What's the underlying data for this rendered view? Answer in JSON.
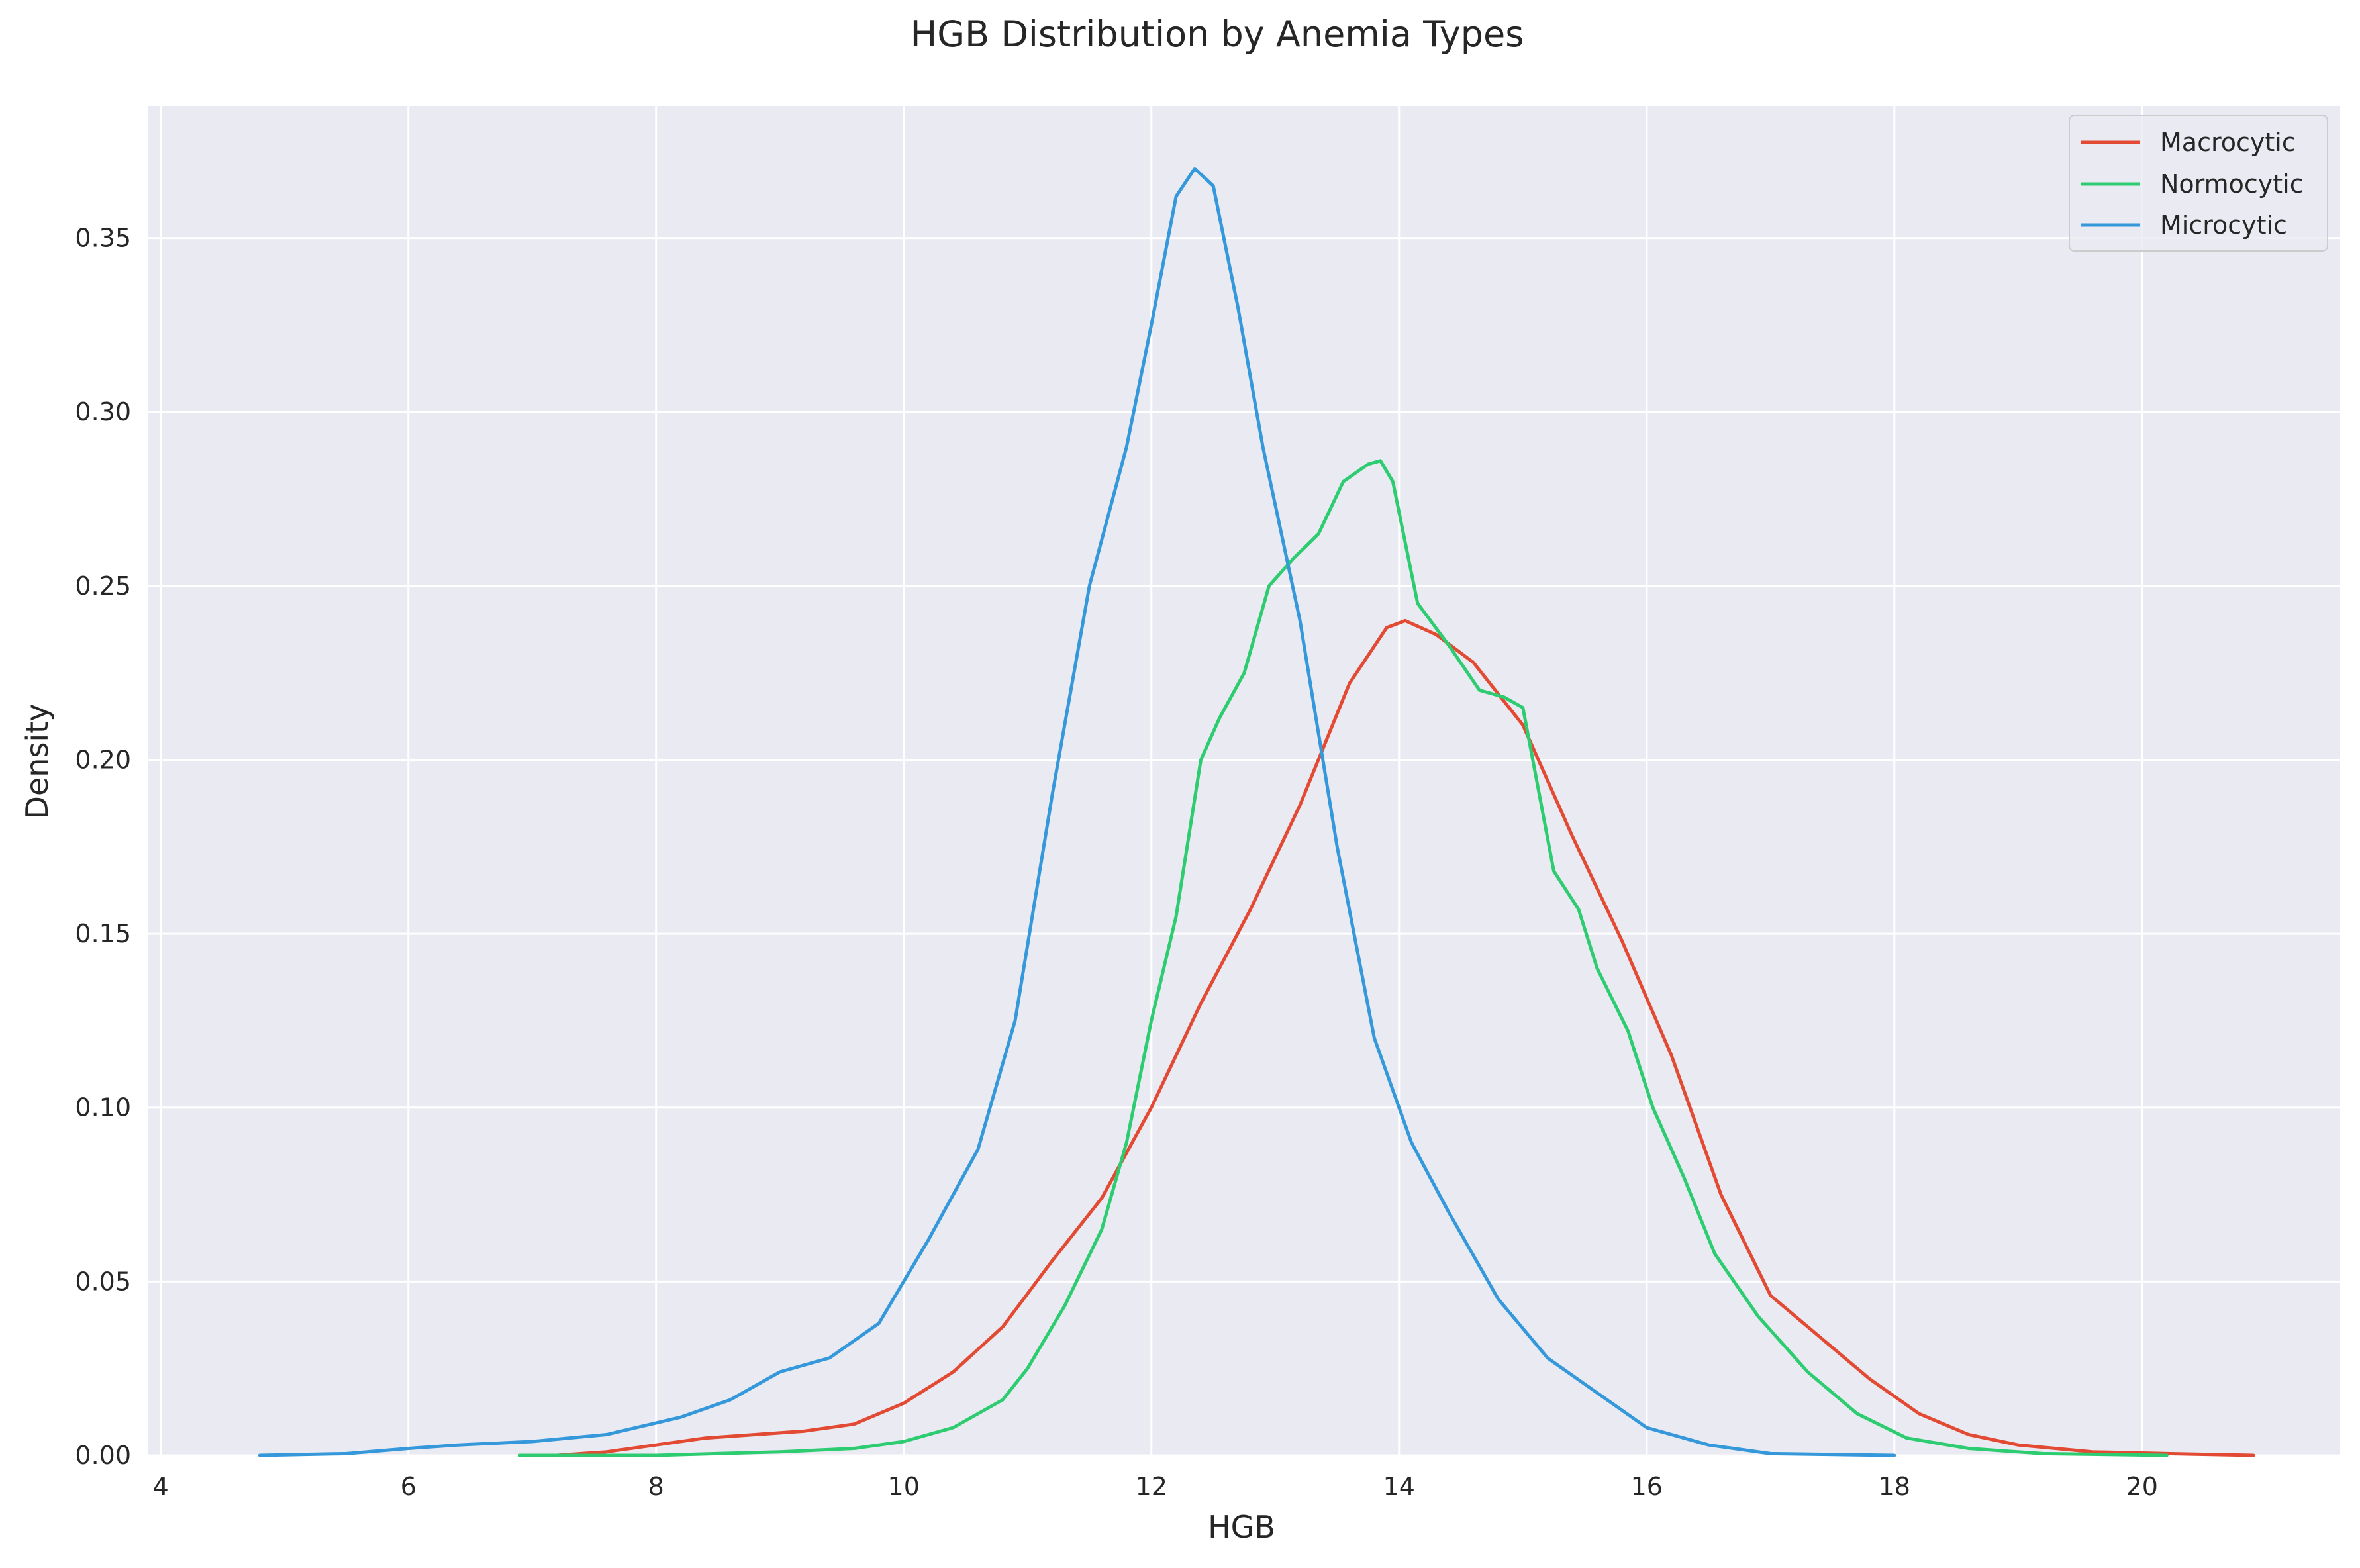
{
  "chart_data": {
    "type": "line",
    "title": "HGB Distribution by Anemia Types",
    "xlabel": "HGB",
    "ylabel": "Density",
    "xlim": [
      3.9,
      21.6
    ],
    "ylim": [
      0,
      0.388
    ],
    "x_ticks": [
      4,
      6,
      8,
      10,
      12,
      14,
      16,
      18,
      20
    ],
    "x_tick_labels": [
      "4",
      "6",
      "8",
      "10",
      "12",
      "14",
      "16",
      "18",
      "20"
    ],
    "y_ticks": [
      0,
      0.05,
      0.1,
      0.15,
      0.2,
      0.25,
      0.3,
      0.35
    ],
    "y_tick_labels": [
      "0.00",
      "0.05",
      "0.10",
      "0.15",
      "0.20",
      "0.25",
      "0.30",
      "0.35"
    ],
    "grid": true,
    "legend_position": "top-right",
    "series": [
      {
        "name": "Macrocytic",
        "color": "#e24a33",
        "points": [
          [
            7.2,
            0.0
          ],
          [
            7.6,
            0.001
          ],
          [
            8.0,
            0.003
          ],
          [
            8.4,
            0.005
          ],
          [
            8.8,
            0.006
          ],
          [
            9.2,
            0.007
          ],
          [
            9.6,
            0.009
          ],
          [
            10.0,
            0.015
          ],
          [
            10.4,
            0.024
          ],
          [
            10.8,
            0.037
          ],
          [
            11.2,
            0.056
          ],
          [
            11.6,
            0.074
          ],
          [
            12.0,
            0.1
          ],
          [
            12.4,
            0.13
          ],
          [
            12.8,
            0.157
          ],
          [
            13.2,
            0.187
          ],
          [
            13.6,
            0.222
          ],
          [
            13.9,
            0.238
          ],
          [
            14.05,
            0.24
          ],
          [
            14.3,
            0.236
          ],
          [
            14.6,
            0.228
          ],
          [
            15.0,
            0.21
          ],
          [
            15.4,
            0.178
          ],
          [
            15.8,
            0.148
          ],
          [
            16.2,
            0.115
          ],
          [
            16.6,
            0.075
          ],
          [
            17.0,
            0.046
          ],
          [
            17.4,
            0.034
          ],
          [
            17.8,
            0.022
          ],
          [
            18.2,
            0.012
          ],
          [
            18.6,
            0.006
          ],
          [
            19.0,
            0.003
          ],
          [
            19.6,
            0.001
          ],
          [
            20.2,
            0.0005
          ],
          [
            20.9,
            0.0
          ]
        ]
      },
      {
        "name": "Normocytic",
        "color": "#2ecc71",
        "points": [
          [
            6.9,
            0.0
          ],
          [
            8.0,
            0.0
          ],
          [
            9.0,
            0.001
          ],
          [
            9.6,
            0.002
          ],
          [
            10.0,
            0.004
          ],
          [
            10.4,
            0.008
          ],
          [
            10.8,
            0.016
          ],
          [
            11.0,
            0.025
          ],
          [
            11.3,
            0.043
          ],
          [
            11.6,
            0.065
          ],
          [
            11.8,
            0.09
          ],
          [
            12.0,
            0.125
          ],
          [
            12.2,
            0.155
          ],
          [
            12.4,
            0.2
          ],
          [
            12.55,
            0.212
          ],
          [
            12.75,
            0.225
          ],
          [
            12.95,
            0.25
          ],
          [
            13.15,
            0.258
          ],
          [
            13.35,
            0.265
          ],
          [
            13.55,
            0.28
          ],
          [
            13.75,
            0.285
          ],
          [
            13.85,
            0.286
          ],
          [
            13.95,
            0.28
          ],
          [
            14.15,
            0.245
          ],
          [
            14.4,
            0.233
          ],
          [
            14.65,
            0.22
          ],
          [
            14.85,
            0.218
          ],
          [
            15.0,
            0.215
          ],
          [
            15.25,
            0.168
          ],
          [
            15.45,
            0.157
          ],
          [
            15.6,
            0.14
          ],
          [
            15.85,
            0.122
          ],
          [
            16.05,
            0.1
          ],
          [
            16.3,
            0.08
          ],
          [
            16.55,
            0.058
          ],
          [
            16.9,
            0.04
          ],
          [
            17.3,
            0.024
          ],
          [
            17.7,
            0.012
          ],
          [
            18.1,
            0.005
          ],
          [
            18.6,
            0.002
          ],
          [
            19.2,
            0.0005
          ],
          [
            20.2,
            0.0
          ]
        ]
      },
      {
        "name": "Microcytic",
        "color": "#3498db",
        "points": [
          [
            4.8,
            0.0
          ],
          [
            5.5,
            0.0005
          ],
          [
            6.0,
            0.002
          ],
          [
            6.4,
            0.003
          ],
          [
            7.0,
            0.004
          ],
          [
            7.6,
            0.006
          ],
          [
            8.2,
            0.011
          ],
          [
            8.6,
            0.016
          ],
          [
            9.0,
            0.024
          ],
          [
            9.4,
            0.028
          ],
          [
            9.8,
            0.038
          ],
          [
            10.2,
            0.062
          ],
          [
            10.6,
            0.088
          ],
          [
            10.9,
            0.125
          ],
          [
            11.2,
            0.19
          ],
          [
            11.5,
            0.25
          ],
          [
            11.8,
            0.29
          ],
          [
            12.0,
            0.325
          ],
          [
            12.2,
            0.362
          ],
          [
            12.35,
            0.37
          ],
          [
            12.5,
            0.365
          ],
          [
            12.7,
            0.33
          ],
          [
            12.9,
            0.29
          ],
          [
            13.2,
            0.24
          ],
          [
            13.5,
            0.175
          ],
          [
            13.8,
            0.12
          ],
          [
            14.1,
            0.09
          ],
          [
            14.4,
            0.07
          ],
          [
            14.8,
            0.045
          ],
          [
            15.2,
            0.028
          ],
          [
            15.6,
            0.018
          ],
          [
            16.0,
            0.008
          ],
          [
            16.5,
            0.003
          ],
          [
            17.0,
            0.0005
          ],
          [
            18.0,
            0.0
          ]
        ]
      }
    ]
  }
}
